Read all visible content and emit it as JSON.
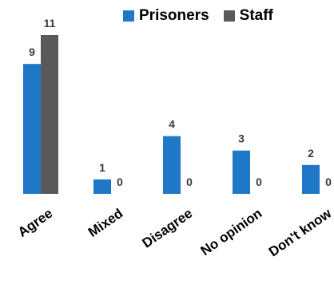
{
  "chart_data": {
    "type": "bar",
    "categories": [
      "Agree",
      "Mixed",
      "Disagree",
      "No opinion",
      "Don't know"
    ],
    "series": [
      {
        "name": "Prisoners",
        "values": [
          9,
          1,
          4,
          3,
          2
        ]
      },
      {
        "name": "Staff",
        "values": [
          11,
          0,
          0,
          0,
          0
        ]
      }
    ],
    "ylim": [
      0,
      11
    ],
    "grid": false,
    "legend_position": "top-right",
    "data_labels": true
  },
  "colors": {
    "prisoners": "#1f77c8",
    "staff": "#595959",
    "text": "#3a3a3a"
  }
}
